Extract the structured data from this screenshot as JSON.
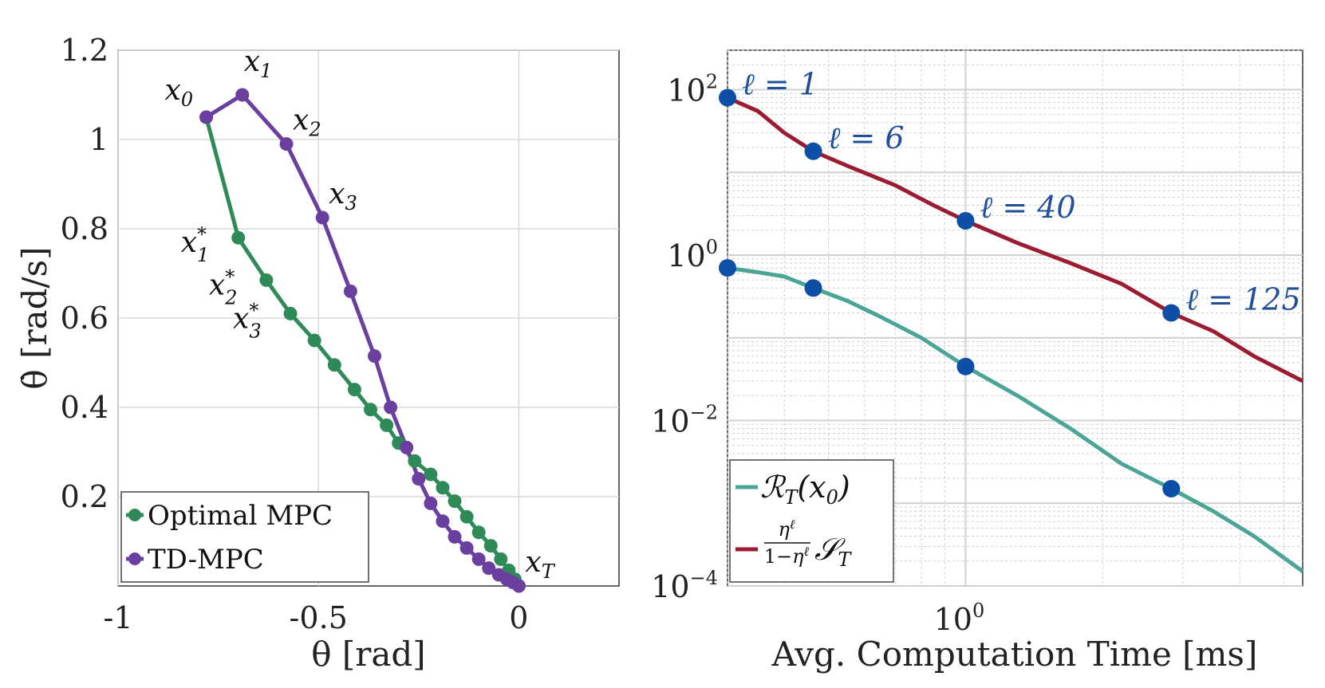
{
  "chart_data": [
    {
      "type": "line",
      "xlabel": "θ [rad]",
      "ylabel": "θ̇ [rad/s]",
      "xlim": [
        -1,
        0.25
      ],
      "ylim": [
        0,
        1.2
      ],
      "xticks": [
        "-1",
        "-0.5",
        "0"
      ],
      "xtick_values": [
        -1,
        -0.5,
        0
      ],
      "yticks": [
        "0.2",
        "0.4",
        "0.6",
        "0.8",
        "1",
        "1.2"
      ],
      "ytick_values": [
        0.2,
        0.4,
        0.6,
        0.8,
        1.0,
        1.2
      ],
      "grid": true,
      "legend": {
        "placement": "bottom-left",
        "entries": [
          "Optimal MPC",
          "TD-MPC"
        ]
      },
      "series": [
        {
          "name": "Optimal MPC",
          "color": "#2e8b57",
          "points": [
            [
              -0.78,
              1.05
            ],
            [
              -0.7,
              0.78
            ],
            [
              -0.63,
              0.685
            ],
            [
              -0.57,
              0.61
            ],
            [
              -0.51,
              0.55
            ],
            [
              -0.46,
              0.495
            ],
            [
              -0.41,
              0.44
            ],
            [
              -0.37,
              0.395
            ],
            [
              -0.33,
              0.36
            ],
            [
              -0.3,
              0.32
            ],
            [
              -0.26,
              0.28
            ],
            [
              -0.22,
              0.25
            ],
            [
              -0.19,
              0.22
            ],
            [
              -0.16,
              0.19
            ],
            [
              -0.13,
              0.155
            ],
            [
              -0.1,
              0.12
            ],
            [
              -0.07,
              0.09
            ],
            [
              -0.045,
              0.06
            ],
            [
              -0.025,
              0.035
            ],
            [
              -0.01,
              0.015
            ],
            [
              0.0,
              0.0
            ]
          ]
        },
        {
          "name": "TD-MPC",
          "color": "#6b3fa0",
          "points": [
            [
              -0.78,
              1.05
            ],
            [
              -0.69,
              1.1
            ],
            [
              -0.58,
              0.99
            ],
            [
              -0.49,
              0.825
            ],
            [
              -0.42,
              0.66
            ],
            [
              -0.36,
              0.515
            ],
            [
              -0.32,
              0.4
            ],
            [
              -0.28,
              0.31
            ],
            [
              -0.25,
              0.24
            ],
            [
              -0.22,
              0.185
            ],
            [
              -0.19,
              0.145
            ],
            [
              -0.16,
              0.11
            ],
            [
              -0.13,
              0.085
            ],
            [
              -0.1,
              0.06
            ],
            [
              -0.075,
              0.04
            ],
            [
              -0.05,
              0.025
            ],
            [
              -0.03,
              0.015
            ],
            [
              -0.015,
              0.008
            ],
            [
              0.0,
              0.0
            ]
          ]
        }
      ],
      "annotations": [
        {
          "text": "x0",
          "base": "x",
          "sub": "0",
          "sup": "",
          "x": -0.78,
          "y": 1.05,
          "pos": "above-left"
        },
        {
          "text": "x1",
          "base": "x",
          "sub": "1",
          "sup": "",
          "x": -0.69,
          "y": 1.1,
          "pos": "above-right"
        },
        {
          "text": "x2",
          "base": "x",
          "sub": "2",
          "sup": "",
          "x": -0.58,
          "y": 0.99,
          "pos": "right-up"
        },
        {
          "text": "x3",
          "base": "x",
          "sub": "3",
          "sup": "",
          "x": -0.49,
          "y": 0.825,
          "pos": "right-up"
        },
        {
          "text": "x1*",
          "base": "x",
          "sub": "1",
          "sup": "*",
          "x": -0.7,
          "y": 0.78,
          "pos": "left"
        },
        {
          "text": "x2*",
          "base": "x",
          "sub": "2",
          "sup": "*",
          "x": -0.63,
          "y": 0.685,
          "pos": "left"
        },
        {
          "text": "x3*",
          "base": "x",
          "sub": "3",
          "sup": "*",
          "x": -0.57,
          "y": 0.61,
          "pos": "left"
        },
        {
          "text": "xT",
          "base": "x",
          "sub": "T",
          "sup": "",
          "x": 0.0,
          "y": 0.0,
          "pos": "right-up"
        }
      ]
    },
    {
      "type": "line",
      "xscale": "log",
      "yscale": "log",
      "xlabel": "Avg. Computation Time [ms]",
      "ylabel": "",
      "xlim": [
        0.3,
        5.5
      ],
      "ylim": [
        0.0001,
        300
      ],
      "xticks": [
        {
          "base": "10",
          "exp": "0"
        }
      ],
      "xtick_values": [
        1
      ],
      "yticks": [
        {
          "base": "10",
          "exp": "2"
        },
        {
          "base": "10",
          "exp": "0"
        },
        {
          "base": "10",
          "exp": "−2"
        },
        {
          "base": "10",
          "exp": "−4"
        }
      ],
      "ytick_values": [
        100,
        1,
        0.01,
        0.0001
      ],
      "grid": true,
      "legend": {
        "placement": "bottom-left",
        "entries": [
          "R_T(x0)",
          "η^ℓ/(1−η^ℓ) S_T"
        ]
      },
      "series": [
        {
          "name": "R_T(x0)",
          "color": "#4aa596",
          "points": [
            [
              0.3,
              0.7
            ],
            [
              0.35,
              0.62
            ],
            [
              0.4,
              0.55
            ],
            [
              0.463,
              0.4
            ],
            [
              0.55,
              0.28
            ],
            [
              0.65,
              0.18
            ],
            [
              0.8,
              0.1
            ],
            [
              1.0,
              0.045
            ],
            [
              1.3,
              0.02
            ],
            [
              1.7,
              0.008
            ],
            [
              2.2,
              0.003
            ],
            [
              2.83,
              0.0015
            ],
            [
              3.5,
              0.0008
            ],
            [
              4.3,
              0.0004
            ],
            [
              5.5,
              0.00015
            ]
          ]
        },
        {
          "name": "η^ℓ/(1−η^ℓ) S_T",
          "color": "#9b1b30",
          "points": [
            [
              0.3,
              80
            ],
            [
              0.35,
              55
            ],
            [
              0.4,
              30
            ],
            [
              0.463,
              18
            ],
            [
              0.55,
              12
            ],
            [
              0.7,
              7
            ],
            [
              0.85,
              4
            ],
            [
              1.0,
              2.6
            ],
            [
              1.3,
              1.4
            ],
            [
              1.7,
              0.8
            ],
            [
              2.2,
              0.45
            ],
            [
              2.83,
              0.2
            ],
            [
              3.5,
              0.12
            ],
            [
              4.3,
              0.06
            ],
            [
              5.5,
              0.03
            ]
          ]
        }
      ],
      "markers": [
        {
          "x": 0.3,
          "y": 80,
          "series": 1,
          "label": "ℓ = 1"
        },
        {
          "x": 0.463,
          "y": 18,
          "series": 1,
          "label": "ℓ = 6"
        },
        {
          "x": 1.0,
          "y": 2.6,
          "series": 1,
          "label": "ℓ = 40"
        },
        {
          "x": 2.83,
          "y": 0.2,
          "series": 1,
          "label": "ℓ = 125"
        },
        {
          "x": 0.3,
          "y": 0.7,
          "series": 0,
          "label": ""
        },
        {
          "x": 0.463,
          "y": 0.4,
          "series": 0,
          "label": ""
        },
        {
          "x": 1.0,
          "y": 0.045,
          "series": 0,
          "label": ""
        },
        {
          "x": 2.83,
          "y": 0.0015,
          "series": 0,
          "label": ""
        }
      ],
      "marker_color": "#0d4ea6"
    }
  ]
}
